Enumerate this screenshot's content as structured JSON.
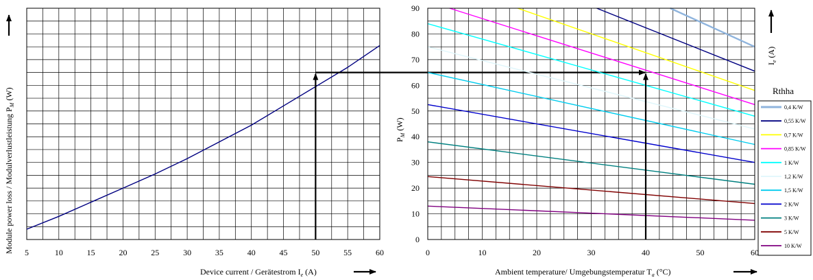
{
  "chart_data": [
    {
      "type": "line",
      "xlabel": "Device current / Gerätestrom I",
      "xlabel_sub": "e",
      "xlabel_unit": "(A)",
      "ylabel": "Module power loss / Modulverlustleistung P",
      "ylabel_sub": "M",
      "ylabel_unit": "(W)",
      "xlim": [
        5,
        60
      ],
      "xticks": [
        "5",
        "10",
        "15",
        "20",
        "25",
        "30",
        "35",
        "40",
        "45",
        "50",
        "55",
        "60"
      ],
      "grid": true,
      "series": [
        {
          "color": "#000080",
          "x": [
            5,
            10,
            15,
            20,
            25,
            30,
            35,
            40,
            45,
            50,
            55,
            60
          ],
          "y": [
            4,
            9,
            14.5,
            20,
            25.5,
            31.5,
            38,
            44.5,
            52,
            59.5,
            67,
            75.5
          ]
        }
      ],
      "annotation": {
        "x": 50,
        "y": 65
      }
    },
    {
      "type": "line",
      "xlabel": "Ambient temperature/ Umgebungstemperatur T",
      "xlabel_sub": "a",
      "xlabel_unit": "(°C)",
      "ylabel": "P",
      "ylabel_sub": "M",
      "ylabel_unit": "(W)",
      "right_label": "I",
      "right_label_sub": "e",
      "right_label_unit": "(A)",
      "xlim": [
        0,
        60
      ],
      "ylim": [
        0,
        90
      ],
      "xticks": [
        "0",
        "10",
        "20",
        "30",
        "40",
        "50",
        "60"
      ],
      "yticks": [
        "0",
        "10",
        "20",
        "30",
        "40",
        "50",
        "60",
        "70",
        "80",
        "90"
      ],
      "grid": true,
      "legend_title": "Rthha",
      "legend_position": "right",
      "annotation": {
        "x": 40,
        "y": 65
      },
      "series": [
        {
          "name": "0,4 K/W",
          "color": "#8FB4DD",
          "x": [
            44.5,
            60
          ],
          "y": [
            90,
            75
          ]
        },
        {
          "name": "0,55 K/W",
          "color": "#000080",
          "x": [
            31,
            60
          ],
          "y": [
            90,
            65.5
          ]
        },
        {
          "name": "0,7 K/W",
          "color": "#FFFF00",
          "x": [
            16.5,
            60
          ],
          "y": [
            90,
            58
          ]
        },
        {
          "name": "0,85 K/W",
          "color": "#FF00FF",
          "x": [
            4,
            60
          ],
          "y": [
            90,
            52.5
          ]
        },
        {
          "name": "1 K/W",
          "color": "#00FFFF",
          "x": [
            0,
            60
          ],
          "y": [
            84,
            48
          ]
        },
        {
          "name": "1,2 K/W",
          "color": "#DFF6FB",
          "x": [
            0,
            60
          ],
          "y": [
            75,
            43
          ]
        },
        {
          "name": "1,5 K/W",
          "color": "#00CCEE",
          "x": [
            0,
            60
          ],
          "y": [
            65,
            37
          ]
        },
        {
          "name": "2 K/W",
          "color": "#0000CC",
          "x": [
            0,
            60
          ],
          "y": [
            52.5,
            30
          ]
        },
        {
          "name": "3 K/W",
          "color": "#008080",
          "x": [
            0,
            60
          ],
          "y": [
            38,
            21.5
          ]
        },
        {
          "name": "5 K/W",
          "color": "#800000",
          "x": [
            0,
            60
          ],
          "y": [
            24.5,
            14
          ]
        },
        {
          "name": "10 K/W",
          "color": "#800080",
          "x": [
            0,
            60
          ],
          "y": [
            13,
            7.5
          ]
        }
      ]
    }
  ]
}
